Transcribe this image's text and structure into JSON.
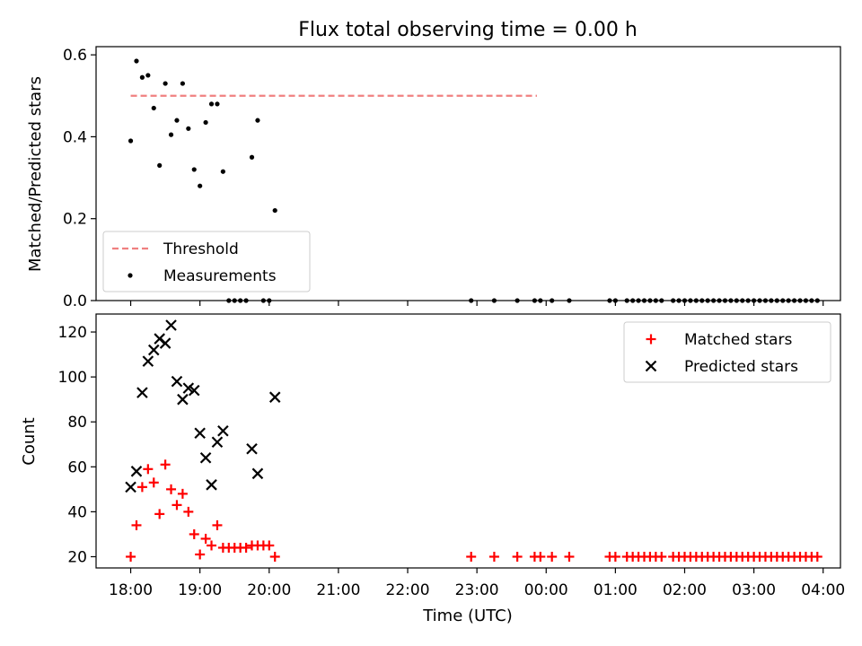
{
  "figure_title": "Flux total observing time = 0.00 h",
  "chart_data": [
    {
      "type": "scatter",
      "ylabel": "Matched/Predicted stars",
      "xlabel": "",
      "xlim": [
        "17:30",
        "04:15"
      ],
      "ylim": [
        0,
        0.62
      ],
      "yticks": [
        0.0,
        0.2,
        0.4,
        0.6
      ],
      "ytick_labels": [
        "0.0",
        "0.2",
        "0.4",
        "0.6"
      ],
      "legend_position": "lower-left",
      "grid": false,
      "series": [
        {
          "name": "Threshold",
          "kind": "dashed-line",
          "color": "#f08080",
          "x": [
            "18:00",
            "23:52"
          ],
          "y": [
            0.5,
            0.5
          ]
        },
        {
          "name": "Measurements",
          "kind": "dot",
          "color": "#000000",
          "x": [
            "18:00",
            "18:05",
            "18:10",
            "18:15",
            "18:20",
            "18:25",
            "18:30",
            "18:35",
            "18:40",
            "18:45",
            "18:50",
            "18:55",
            "19:00",
            "19:05",
            "19:10",
            "19:15",
            "19:20",
            "19:25",
            "19:30",
            "19:35",
            "19:40",
            "19:45",
            "19:50",
            "19:55",
            "20:00",
            "20:05",
            "22:55",
            "23:15",
            "23:35",
            "23:50",
            "23:55",
            "00:05",
            "00:20",
            "00:55",
            "01:00",
            "01:10",
            "01:15",
            "01:20",
            "01:25",
            "01:30",
            "01:35",
            "01:40",
            "01:50",
            "01:55",
            "02:00",
            "02:05",
            "02:10",
            "02:15",
            "02:20",
            "02:25",
            "02:30",
            "02:35",
            "02:40",
            "02:45",
            "02:50",
            "02:55",
            "03:00",
            "03:05",
            "03:10",
            "03:15",
            "03:20",
            "03:25",
            "03:30",
            "03:35",
            "03:40",
            "03:45",
            "03:50",
            "03:55"
          ],
          "y": [
            0.39,
            0.585,
            0.545,
            0.55,
            0.47,
            0.33,
            0.53,
            0.405,
            0.44,
            0.53,
            0.42,
            0.32,
            0.28,
            0.435,
            0.48,
            0.48,
            0.315,
            0,
            0,
            0,
            0,
            0.35,
            0.44,
            0,
            0,
            0.22,
            0,
            0,
            0,
            0,
            0,
            0,
            0,
            0,
            0,
            0,
            0,
            0,
            0,
            0,
            0,
            0,
            0,
            0,
            0,
            0,
            0,
            0,
            0,
            0,
            0,
            0,
            0,
            0,
            0,
            0,
            0,
            0,
            0,
            0,
            0,
            0,
            0,
            0,
            0,
            0,
            0,
            0
          ]
        }
      ]
    },
    {
      "type": "scatter",
      "ylabel": "Count",
      "xlabel": "Time (UTC)",
      "xlim": [
        "17:30",
        "04:15"
      ],
      "ylim": [
        15,
        128
      ],
      "yticks": [
        20,
        40,
        60,
        80,
        100,
        120
      ],
      "ytick_labels": [
        "20",
        "40",
        "60",
        "80",
        "100",
        "120"
      ],
      "xticks": [
        "18:00",
        "19:00",
        "20:00",
        "21:00",
        "22:00",
        "23:00",
        "00:00",
        "01:00",
        "02:00",
        "03:00",
        "04:00"
      ],
      "xtick_labels": [
        "18:00",
        "19:00",
        "20:00",
        "21:00",
        "22:00",
        "23:00",
        "00:00",
        "01:00",
        "02:00",
        "03:00",
        "04:00"
      ],
      "legend_position": "upper-right",
      "grid": false,
      "series": [
        {
          "name": "Matched stars",
          "kind": "plus",
          "color": "#ff0000",
          "x": [
            "18:00",
            "18:05",
            "18:10",
            "18:15",
            "18:20",
            "18:25",
            "18:30",
            "18:35",
            "18:40",
            "18:45",
            "18:50",
            "18:55",
            "19:00",
            "19:05",
            "19:10",
            "19:15",
            "19:20",
            "19:25",
            "19:30",
            "19:35",
            "19:40",
            "19:45",
            "19:50",
            "19:55",
            "20:00",
            "20:05",
            "22:55",
            "23:15",
            "23:35",
            "23:50",
            "23:55",
            "00:05",
            "00:20",
            "00:55",
            "01:00",
            "01:10",
            "01:15",
            "01:20",
            "01:25",
            "01:30",
            "01:35",
            "01:40",
            "01:50",
            "01:55",
            "02:00",
            "02:05",
            "02:10",
            "02:15",
            "02:20",
            "02:25",
            "02:30",
            "02:35",
            "02:40",
            "02:45",
            "02:50",
            "02:55",
            "03:00",
            "03:05",
            "03:10",
            "03:15",
            "03:20",
            "03:25",
            "03:30",
            "03:35",
            "03:40",
            "03:45",
            "03:50",
            "03:55"
          ],
          "y": [
            20,
            34,
            51,
            59,
            53,
            39,
            61,
            50,
            43,
            48,
            40,
            30,
            21,
            28,
            25,
            34,
            24,
            24,
            24,
            24,
            24,
            25,
            25,
            25,
            25,
            20,
            20,
            20,
            20,
            20,
            20,
            20,
            20,
            20,
            20,
            20,
            20,
            20,
            20,
            20,
            20,
            20,
            20,
            20,
            20,
            20,
            20,
            20,
            20,
            20,
            20,
            20,
            20,
            20,
            20,
            20,
            20,
            20,
            20,
            20,
            20,
            20,
            20,
            20,
            20,
            20,
            20,
            20
          ]
        },
        {
          "name": "Predicted stars",
          "kind": "x",
          "color": "#000000",
          "x": [
            "18:00",
            "18:05",
            "18:10",
            "18:15",
            "18:20",
            "18:25",
            "18:30",
            "18:35",
            "18:40",
            "18:45",
            "18:50",
            "18:55",
            "19:00",
            "19:05",
            "19:10",
            "19:15",
            "19:20",
            "19:45",
            "19:50",
            "20:05"
          ],
          "y": [
            51,
            58,
            93,
            107,
            112,
            117,
            115,
            123,
            98,
            90,
            95,
            94,
            75,
            64,
            52,
            71,
            76,
            68,
            57,
            91
          ]
        }
      ]
    }
  ]
}
